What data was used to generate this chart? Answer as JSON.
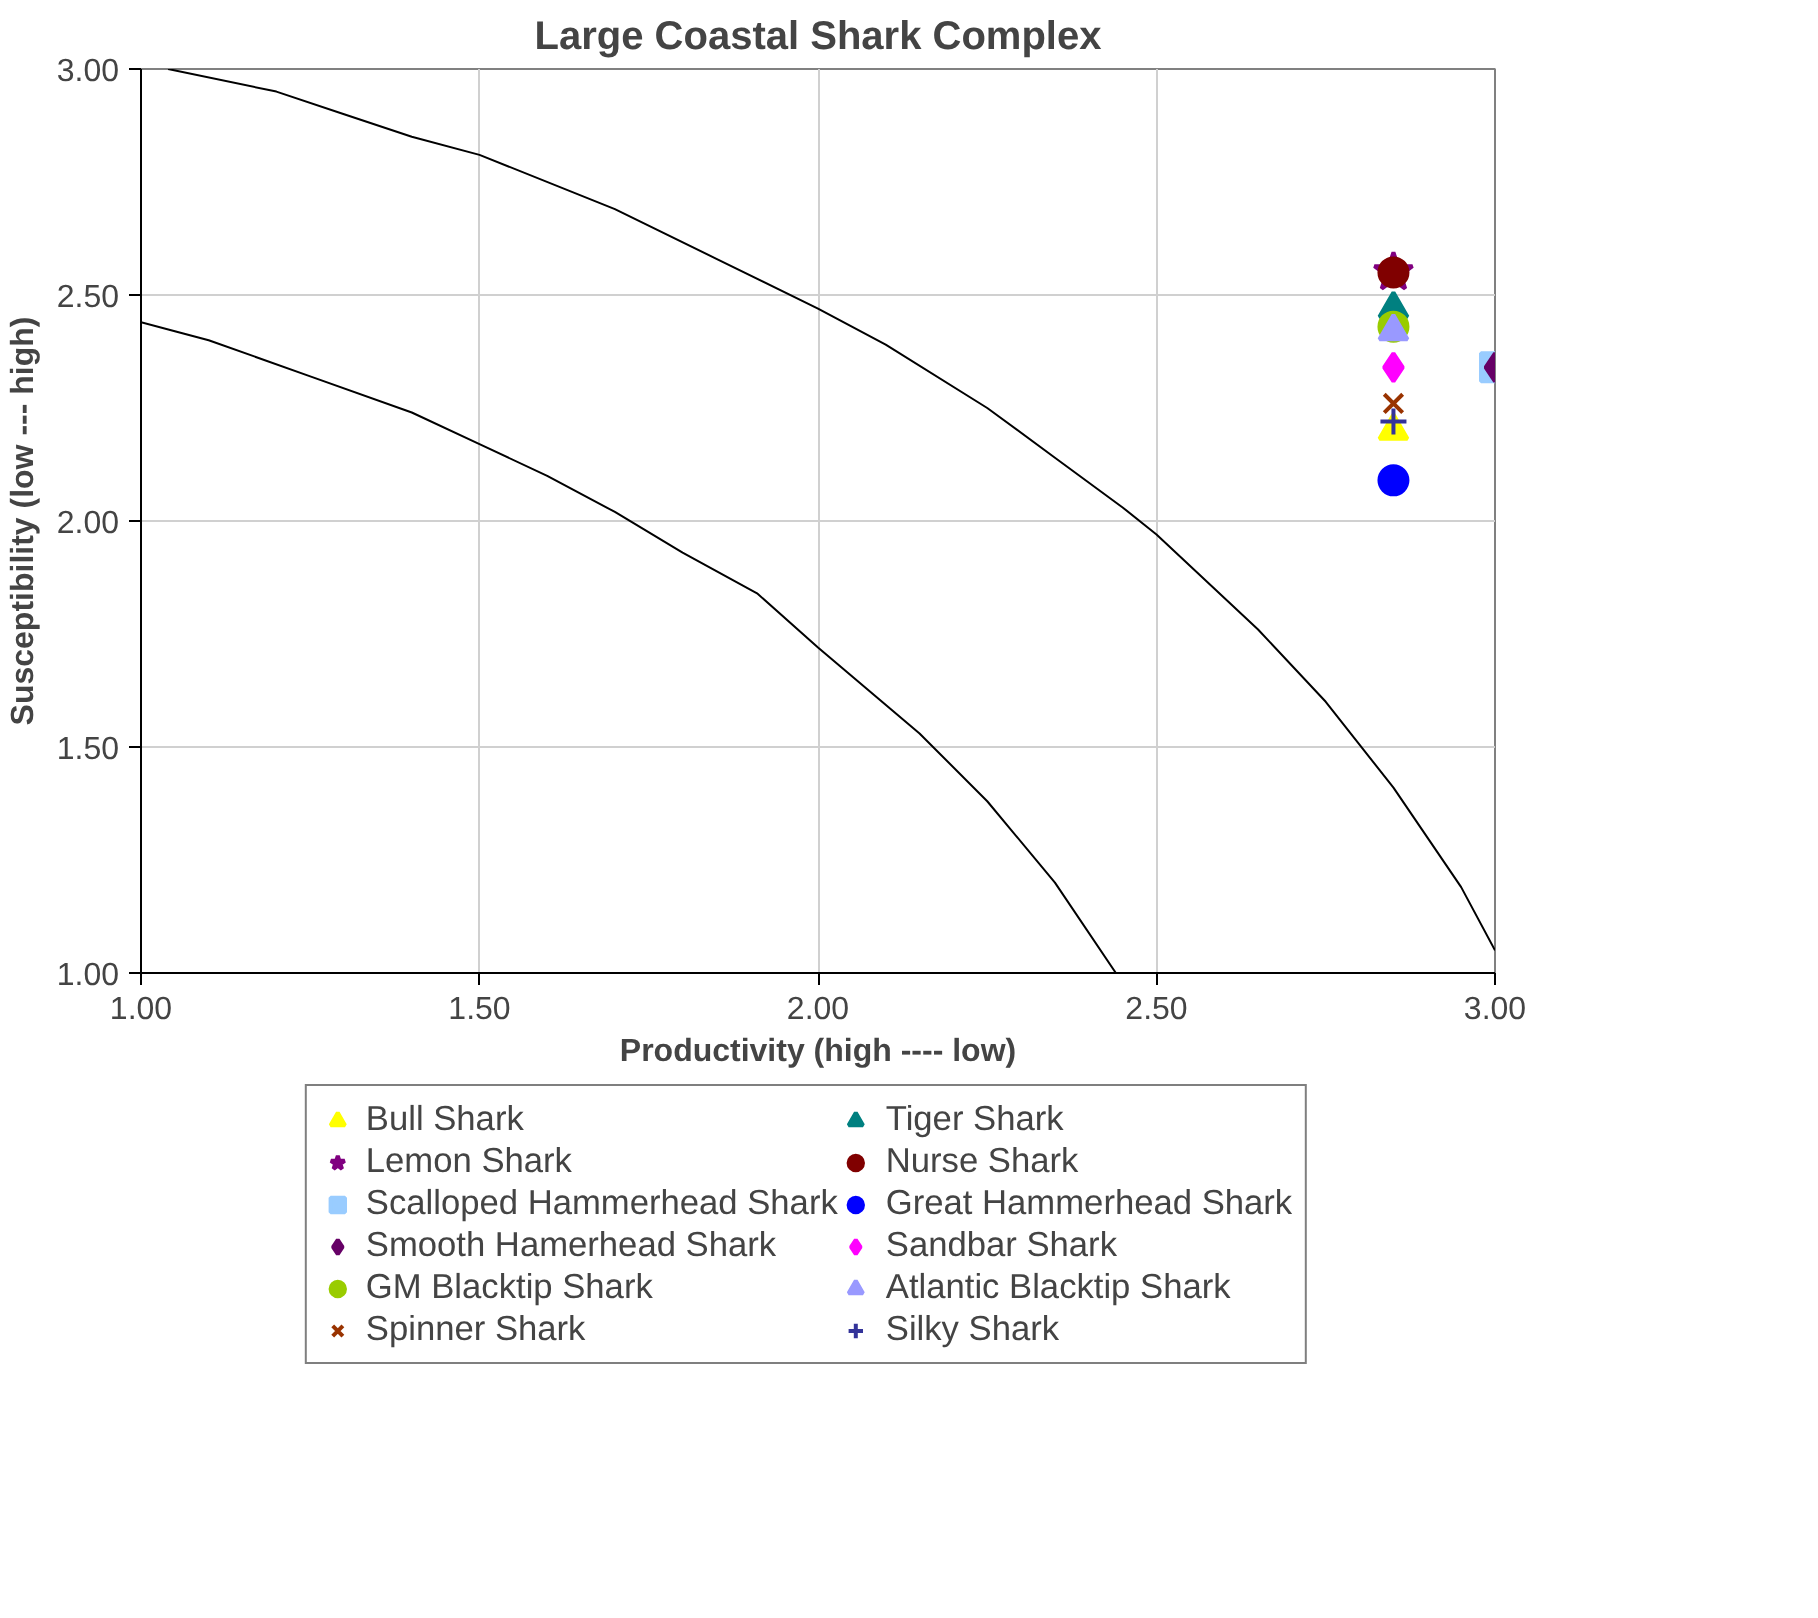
{
  "chart_data": {
    "type": "scatter",
    "title": "Large Coastal Shark Complex",
    "xlabel": "Productivity (high ---- low)",
    "ylabel": "Susceptibility (low --- high)",
    "xlim": [
      1.0,
      3.0
    ],
    "ylim": [
      1.0,
      3.0
    ],
    "xticks": [
      {
        "value": 1.0,
        "label": "1.00"
      },
      {
        "value": 1.5,
        "label": "1.50"
      },
      {
        "value": 2.0,
        "label": "2.00"
      },
      {
        "value": 2.5,
        "label": "2.50"
      },
      {
        "value": 3.0,
        "label": "3.00"
      }
    ],
    "yticks": [
      {
        "value": 1.0,
        "label": "1.00"
      },
      {
        "value": 1.5,
        "label": "1.50"
      },
      {
        "value": 2.0,
        "label": "2.00"
      },
      {
        "value": 2.5,
        "label": "2.50"
      },
      {
        "value": 3.0,
        "label": "3.00"
      }
    ],
    "grid": true,
    "legend": "bottom",
    "series": [
      {
        "type": "line",
        "color": "#000000",
        "marker": "none",
        "x": [
          1.04,
          1.2,
          1.3,
          1.4,
          1.5,
          1.7,
          1.85,
          2.0,
          2.1,
          2.25,
          2.35,
          2.45,
          2.5,
          2.65,
          2.75,
          2.85,
          2.95,
          3.0
        ],
        "values": [
          3.0,
          2.95,
          2.9,
          2.85,
          2.81,
          2.69,
          2.58,
          2.47,
          2.39,
          2.25,
          2.14,
          2.03,
          1.97,
          1.76,
          1.6,
          1.41,
          1.19,
          1.05
        ]
      },
      {
        "type": "line",
        "color": "#000000",
        "marker": "none",
        "x": [
          1.0,
          1.05,
          1.1,
          1.25,
          1.4,
          1.5,
          1.6,
          1.7,
          1.8,
          1.91,
          2.0,
          2.15,
          2.25,
          2.35,
          2.44
        ],
        "values": [
          2.44,
          2.42,
          2.4,
          2.32,
          2.24,
          2.17,
          2.1,
          2.02,
          1.93,
          1.84,
          1.72,
          1.53,
          1.38,
          1.2,
          1.0
        ]
      },
      {
        "name": "Bull Shark",
        "color": "#ffff00",
        "marker": "triangle",
        "x": [
          2.85
        ],
        "values": [
          2.2
        ]
      },
      {
        "name": "Tiger Shark",
        "color": "#008080",
        "marker": "triangle",
        "x": [
          2.85
        ],
        "values": [
          2.47
        ]
      },
      {
        "name": "Lemon Shark",
        "color": "#800080",
        "marker": "star",
        "x": [
          2.85
        ],
        "values": [
          2.55
        ]
      },
      {
        "name": "Nurse Shark",
        "color": "#800000",
        "marker": "circle",
        "x": [
          2.85
        ],
        "values": [
          2.55
        ]
      },
      {
        "name": "Scalloped Hammerhead Shark",
        "color": "#99ccff",
        "marker": "square",
        "x": [
          3.0
        ],
        "values": [
          2.34
        ]
      },
      {
        "name": "Great Hammerhead Shark",
        "color": "#0000ff",
        "marker": "circle",
        "x": [
          2.85
        ],
        "values": [
          2.09
        ]
      },
      {
        "name": "Smooth Hamerhead Shark",
        "color": "#660066",
        "marker": "diamond",
        "x": [
          3.0
        ],
        "values": [
          2.34
        ]
      },
      {
        "name": "Sandbar Shark",
        "color": "#ff00ff",
        "marker": "diamond",
        "x": [
          2.85
        ],
        "values": [
          2.34
        ]
      },
      {
        "name": "GM Blacktip Shark",
        "color": "#99cc00",
        "marker": "circle",
        "x": [
          2.85
        ],
        "values": [
          2.43
        ]
      },
      {
        "name": "Atlantic Blacktip Shark",
        "color": "#9999ff",
        "marker": "triangle",
        "x": [
          2.85
        ],
        "values": [
          2.42
        ]
      },
      {
        "name": "Spinner Shark",
        "color": "#993300",
        "marker": "x",
        "x": [
          2.85
        ],
        "values": [
          2.26
        ]
      },
      {
        "name": "Silky Shark",
        "color": "#333399",
        "marker": "cross",
        "x": [
          2.85
        ],
        "values": [
          2.22
        ]
      }
    ]
  }
}
